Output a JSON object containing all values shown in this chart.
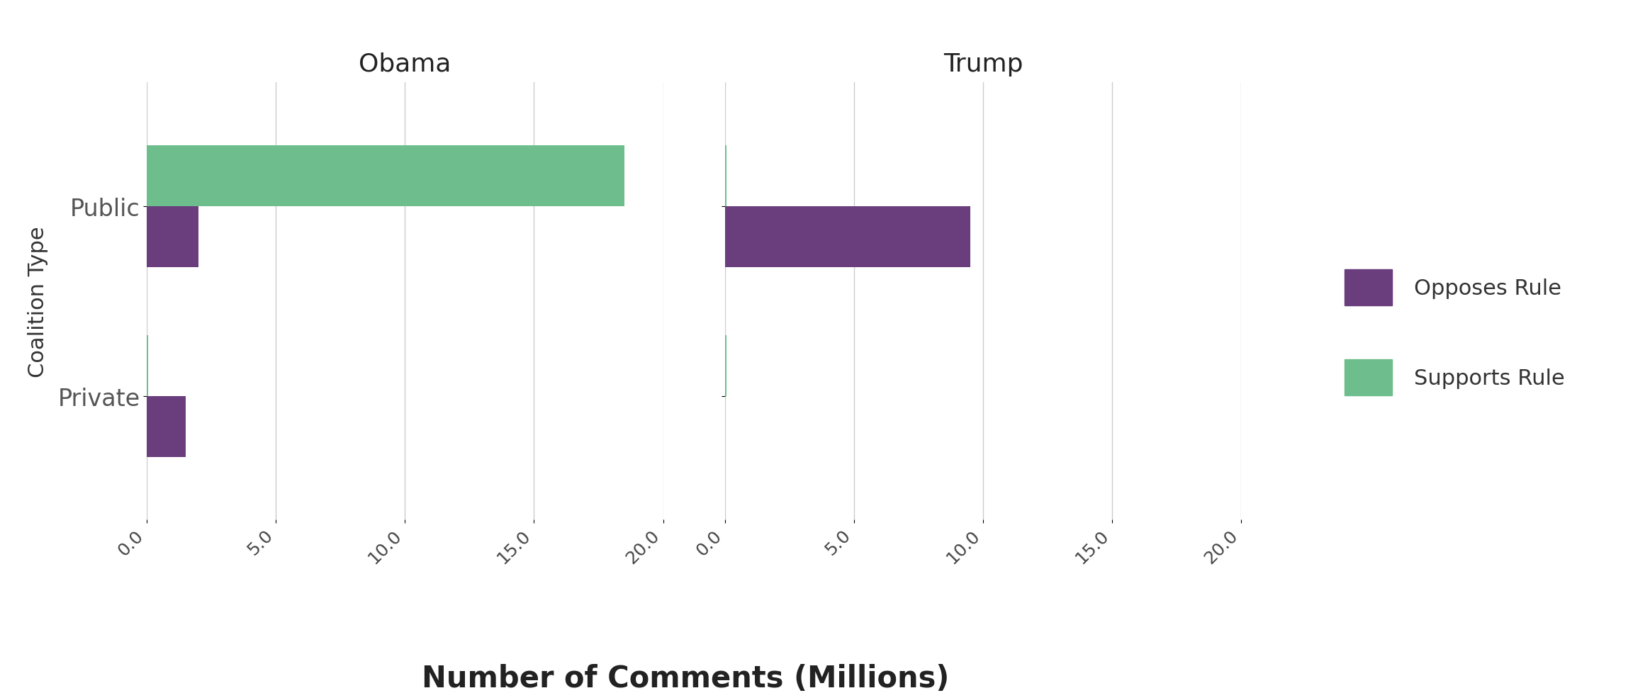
{
  "facets": [
    "Obama",
    "Trump"
  ],
  "categories": [
    "Public",
    "Private"
  ],
  "opposes_values": {
    "Obama": {
      "Public": 2.0,
      "Private": 1.5
    },
    "Trump": {
      "Public": 9.5,
      "Private": 0.0
    }
  },
  "supports_values": {
    "Obama": {
      "Public": 18.5,
      "Private": 0.05
    },
    "Trump": {
      "Public": 0.05,
      "Private": 0.05
    }
  },
  "opposes_color": "#6a3d7c",
  "supports_color": "#6dbe8c",
  "xlim": [
    0,
    20.0
  ],
  "xticks": [
    0.0,
    5.0,
    10.0,
    15.0,
    20.0
  ],
  "xlabel": "Number of Comments (Millions)",
  "ylabel": "Coalition Type",
  "facet_title_fontsize": 26,
  "axis_label_fontsize": 30,
  "tick_fontsize": 18,
  "legend_fontsize": 22,
  "ylabel_fontsize": 22,
  "bar_height": 0.32,
  "background_color": "#ffffff",
  "grid_color": "#cccccc",
  "legend_labels": [
    "Opposes Rule",
    "Supports Rule"
  ]
}
